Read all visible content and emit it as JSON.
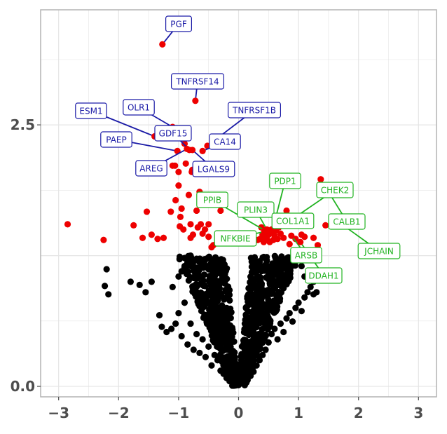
{
  "chart_data": {
    "type": "scatter",
    "title": "",
    "xlabel": "",
    "ylabel": "",
    "xlim": [
      -3.3,
      3.3
    ],
    "ylim": [
      -0.1,
      3.6
    ],
    "x_ticks": [
      "−3",
      "−2",
      "−1",
      "0",
      "1",
      "2",
      "3"
    ],
    "x_tick_values": [
      -3,
      -2,
      -1,
      0,
      1,
      2,
      3
    ],
    "y_ticks": [
      "0.0",
      "2.5"
    ],
    "y_tick_values": [
      0.0,
      2.5
    ],
    "grid": true,
    "colors": {
      "not_significant": "#000000",
      "significant": "#ee0000",
      "down_label": "#1a1aa6",
      "up_label": "#22b322",
      "grid": "#e5e5e5",
      "panel_border": "#b3b3b3"
    },
    "labeled_points": [
      {
        "name": "PGF",
        "x": -1.27,
        "y": 3.27,
        "group": "down"
      },
      {
        "name": "TNFRSF14",
        "x": -0.72,
        "y": 2.73,
        "group": "down"
      },
      {
        "name": "OLR1",
        "x": -1.1,
        "y": 2.48,
        "group": "down"
      },
      {
        "name": "ESM1",
        "x": -1.4,
        "y": 2.39,
        "group": "down"
      },
      {
        "name": "GDF15",
        "x": -0.82,
        "y": 2.26,
        "group": "down"
      },
      {
        "name": "TNFRSF1B",
        "x": -0.52,
        "y": 2.3,
        "group": "down"
      },
      {
        "name": "PAEP",
        "x": -1.02,
        "y": 2.25,
        "group": "down"
      },
      {
        "name": "CA14",
        "x": -0.6,
        "y": 2.25,
        "group": "down"
      },
      {
        "name": "AREG",
        "x": -0.86,
        "y": 2.27,
        "group": "down"
      },
      {
        "name": "LGALS9",
        "x": -0.77,
        "y": 2.26,
        "group": "down"
      },
      {
        "name": "PDP1",
        "x": 0.56,
        "y": 1.48,
        "group": "up"
      },
      {
        "name": "CHEK2",
        "x": 0.62,
        "y": 1.49,
        "group": "up"
      },
      {
        "name": "PPIB",
        "x": 0.44,
        "y": 1.49,
        "group": "up"
      },
      {
        "name": "PLIN3",
        "x": 0.47,
        "y": 1.5,
        "group": "up"
      },
      {
        "name": "COL1A1",
        "x": 0.55,
        "y": 1.5,
        "group": "up"
      },
      {
        "name": "CALB1",
        "x": 1.37,
        "y": 1.98,
        "group": "up"
      },
      {
        "name": "NFKBIE",
        "x": 0.43,
        "y": 1.48,
        "group": "up"
      },
      {
        "name": "JCHAIN",
        "x": 1.55,
        "y": 1.62,
        "group": "up"
      },
      {
        "name": "ARSB",
        "x": 0.88,
        "y": 1.44,
        "group": "up"
      },
      {
        "name": "DDAH1",
        "x": 1.03,
        "y": 1.38,
        "group": "up"
      }
    ],
    "significant_points": [
      [
        -2.85,
        1.55
      ],
      [
        -2.25,
        1.4
      ],
      [
        -1.75,
        1.54
      ],
      [
        -1.6,
        1.42
      ],
      [
        -1.53,
        1.67
      ],
      [
        -1.45,
        1.45
      ],
      [
        -1.35,
        1.41
      ],
      [
        -1.13,
        1.67
      ],
      [
        -1.0,
        2.05
      ],
      [
        -1.0,
        1.92
      ],
      [
        -0.98,
        1.53
      ],
      [
        -0.97,
        1.62
      ],
      [
        -0.95,
        1.7
      ],
      [
        -0.92,
        1.5
      ],
      [
        -0.88,
        2.13
      ],
      [
        -0.83,
        1.83
      ],
      [
        -0.8,
        1.55
      ],
      [
        -0.77,
        2.07
      ],
      [
        -0.73,
        2.05
      ],
      [
        -0.7,
        1.68
      ],
      [
        -0.68,
        1.52
      ],
      [
        -0.63,
        1.55
      ],
      [
        -0.6,
        1.46
      ],
      [
        -0.55,
        1.76
      ],
      [
        -0.5,
        1.43
      ],
      [
        -0.45,
        1.33
      ],
      [
        -1.1,
        2.11
      ],
      [
        -1.06,
        2.11
      ],
      [
        -0.8,
        1.42
      ],
      [
        -0.76,
        1.45
      ],
      [
        -0.9,
        2.32
      ],
      [
        -1.05,
        1.78
      ],
      [
        -0.3,
        1.68
      ],
      [
        -0.35,
        1.42
      ],
      [
        -0.65,
        1.86
      ],
      [
        -0.78,
        2.05
      ],
      [
        -1.25,
        1.42
      ],
      [
        -0.56,
        1.5
      ],
      [
        -0.5,
        1.55
      ],
      [
        -0.42,
        1.35
      ],
      [
        0.32,
        1.4
      ],
      [
        0.36,
        1.41
      ],
      [
        0.4,
        1.45
      ],
      [
        0.42,
        1.38
      ],
      [
        0.45,
        1.43
      ],
      [
        0.48,
        1.4
      ],
      [
        0.5,
        1.45
      ],
      [
        0.53,
        1.47
      ],
      [
        0.58,
        1.4
      ],
      [
        0.6,
        1.44
      ],
      [
        0.65,
        1.41
      ],
      [
        0.7,
        1.46
      ],
      [
        0.75,
        1.42
      ],
      [
        0.8,
        1.68
      ],
      [
        0.72,
        1.58
      ],
      [
        0.38,
        1.52
      ],
      [
        0.52,
        1.38
      ],
      [
        0.85,
        1.36
      ],
      [
        1.05,
        1.45
      ],
      [
        1.25,
        1.42
      ],
      [
        1.32,
        1.35
      ],
      [
        1.45,
        1.54
      ],
      [
        1.1,
        1.43
      ],
      [
        0.95,
        1.41
      ],
      [
        0.67,
        1.52
      ]
    ],
    "nonsignificant_points": [
      [
        -2.2,
        1.12
      ],
      [
        -2.23,
        0.96
      ],
      [
        -2.17,
        0.88
      ],
      [
        -1.8,
        1.0
      ],
      [
        -1.65,
        0.97
      ],
      [
        -1.55,
        0.9
      ],
      [
        -1.45,
        1.0
      ],
      [
        -1.32,
        0.68
      ],
      [
        -1.28,
        0.57
      ],
      [
        -1.2,
        0.52
      ],
      [
        -1.12,
        0.55
      ],
      [
        -1.05,
        0.6
      ],
      [
        -1.0,
        0.7
      ],
      [
        -0.95,
        0.48
      ],
      [
        -0.9,
        0.8
      ],
      [
        -0.85,
        0.4
      ],
      [
        -0.8,
        0.6
      ],
      [
        -0.75,
        0.35
      ],
      [
        -0.7,
        0.5
      ],
      [
        -0.65,
        0.32
      ],
      [
        -0.6,
        0.45
      ],
      [
        -0.55,
        0.28
      ],
      [
        -0.5,
        0.38
      ],
      [
        -0.45,
        0.2
      ],
      [
        -0.4,
        0.3
      ],
      [
        -0.35,
        0.25
      ],
      [
        -0.3,
        0.15
      ],
      [
        -0.25,
        0.12
      ],
      [
        -0.2,
        0.08
      ],
      [
        -0.15,
        0.05
      ],
      [
        -0.1,
        0.03
      ],
      [
        0.1,
        0.03
      ],
      [
        0.15,
        0.06
      ],
      [
        0.2,
        0.1
      ],
      [
        0.25,
        0.14
      ],
      [
        0.3,
        0.2
      ],
      [
        0.35,
        0.25
      ],
      [
        0.4,
        0.3
      ],
      [
        0.45,
        0.35
      ],
      [
        0.5,
        0.42
      ],
      [
        0.55,
        0.5
      ],
      [
        0.6,
        0.55
      ],
      [
        0.65,
        0.45
      ],
      [
        0.7,
        0.6
      ],
      [
        0.75,
        0.52
      ],
      [
        0.8,
        0.65
      ],
      [
        0.85,
        0.7
      ],
      [
        0.9,
        0.62
      ],
      [
        0.95,
        0.75
      ],
      [
        1.0,
        0.8
      ],
      [
        1.05,
        0.72
      ],
      [
        1.1,
        0.85
      ],
      [
        1.15,
        0.9
      ],
      [
        1.2,
        0.95
      ],
      [
        1.25,
        1.0
      ],
      [
        1.3,
        0.9
      ],
      [
        1.25,
        0.88
      ],
      [
        1.1,
        1.05
      ],
      [
        1.05,
        1.15
      ],
      [
        0.9,
        1.2
      ],
      [
        -1.1,
        0.95
      ],
      [
        -1.0,
        1.05
      ],
      [
        -0.95,
        1.1
      ],
      [
        -0.9,
        1.15
      ],
      [
        -0.85,
        1.2
      ],
      [
        -0.8,
        1.25
      ],
      [
        -0.7,
        1.22
      ],
      [
        -0.6,
        1.18
      ],
      [
        -0.5,
        1.12
      ],
      [
        -0.4,
        1.05
      ]
    ]
  }
}
